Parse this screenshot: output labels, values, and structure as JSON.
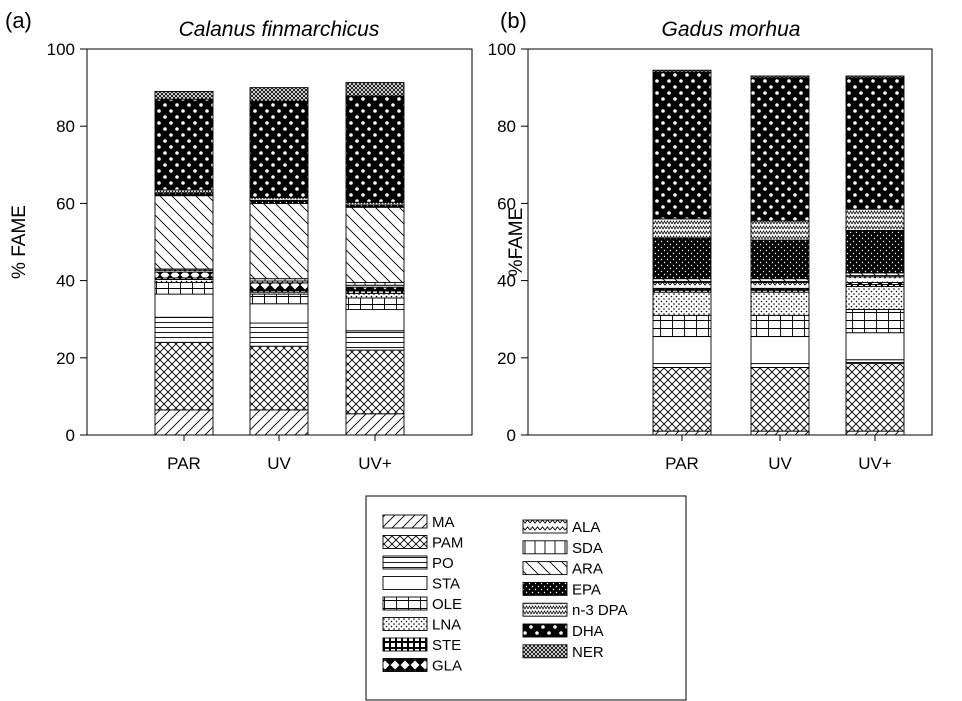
{
  "chart_data": [
    {
      "type": "bar",
      "stacked": true,
      "panel_label": "(a)",
      "title": "Calanus finmarchicus",
      "xlabel": "",
      "ylabel": "% FAME",
      "ylim": [
        0,
        100
      ],
      "yticks": [
        0,
        20,
        40,
        60,
        80,
        100
      ],
      "categories": [
        "PAR",
        "UV",
        "UV+"
      ],
      "series": [
        {
          "name": "MA",
          "values": [
            6.5,
            6.5,
            5.5
          ]
        },
        {
          "name": "PAM",
          "values": [
            17.5,
            16.5,
            16.5
          ]
        },
        {
          "name": "PO",
          "values": [
            6.5,
            6.0,
            5.0
          ]
        },
        {
          "name": "STA",
          "values": [
            6.0,
            5.0,
            5.5
          ]
        },
        {
          "name": "OLE",
          "values": [
            3.0,
            2.5,
            3.0
          ]
        },
        {
          "name": "LNA",
          "values": [
            0.8,
            0.5,
            1.2
          ]
        },
        {
          "name": "STE",
          "values": [
            0.4,
            0.4,
            0.6
          ]
        },
        {
          "name": "GLA",
          "values": [
            1.5,
            2.0,
            1.0
          ]
        },
        {
          "name": "ALA",
          "values": [
            0.5,
            0.5,
            0.5
          ]
        },
        {
          "name": "SDA",
          "values": [
            0.3,
            0.6,
            0.7
          ]
        },
        {
          "name": "ARA",
          "values": [
            19.0,
            19.5,
            19.5
          ]
        },
        {
          "name": "EPA",
          "values": [
            0.7,
            0.8,
            0.6
          ]
        },
        {
          "name": "n-3 DPA",
          "values": [
            0.8,
            0.7,
            0.7
          ]
        },
        {
          "name": "DHA",
          "values": [
            23.5,
            25.0,
            27.5
          ]
        },
        {
          "name": "NER",
          "values": [
            2.0,
            3.5,
            3.5
          ]
        }
      ]
    },
    {
      "type": "bar",
      "stacked": true,
      "panel_label": "(b)",
      "title": "Gadus morhua",
      "xlabel": "",
      "ylabel": "%FAME",
      "ylim": [
        0,
        100
      ],
      "yticks": [
        0,
        20,
        40,
        60,
        80,
        100
      ],
      "categories": [
        "PAR",
        "UV",
        "UV+"
      ],
      "series": [
        {
          "name": "MA",
          "values": [
            1.0,
            1.0,
            1.0
          ]
        },
        {
          "name": "PAM",
          "values": [
            16.5,
            16.5,
            17.5
          ]
        },
        {
          "name": "PO",
          "values": [
            1.0,
            1.0,
            1.0
          ]
        },
        {
          "name": "STA",
          "values": [
            7.0,
            7.0,
            7.0
          ]
        },
        {
          "name": "OLE",
          "values": [
            5.5,
            5.5,
            6.0
          ]
        },
        {
          "name": "LNA",
          "values": [
            6.0,
            6.0,
            6.0
          ]
        },
        {
          "name": "STE",
          "values": [
            0.5,
            0.5,
            0.5
          ]
        },
        {
          "name": "GLA",
          "values": [
            0.5,
            0.5,
            0.5
          ]
        },
        {
          "name": "ALA",
          "values": [
            1.5,
            1.5,
            1.5
          ]
        },
        {
          "name": "SDA",
          "values": [
            0.3,
            0.3,
            0.3
          ]
        },
        {
          "name": "ARA",
          "values": [
            0.7,
            0.7,
            0.7
          ]
        },
        {
          "name": "EPA",
          "values": [
            10.5,
            10.0,
            11.0
          ]
        },
        {
          "name": "n-3 DPA",
          "values": [
            5.0,
            5.0,
            5.5
          ]
        },
        {
          "name": "DHA",
          "values": [
            38.0,
            37.0,
            34.0
          ]
        },
        {
          "name": "NER",
          "values": [
            0.5,
            0.5,
            0.5
          ]
        }
      ]
    }
  ],
  "legend": {
    "placement": "bottom-center",
    "column1": [
      "MA",
      "PAM",
      "PO",
      "STA",
      "OLE",
      "LNA",
      "STE",
      "GLA"
    ],
    "column2": [
      "ALA",
      "SDA",
      "ARA",
      "EPA",
      "n-3 DPA",
      "DHA",
      "NER"
    ]
  },
  "pattern_names": {
    "MA": "diagonal-hatch",
    "PAM": "crosshatch",
    "PO": "horizontal-lines",
    "STA": "blank",
    "OLE": "grid",
    "LNA": "dots",
    "STE": "bricks",
    "GLA": "diamonds",
    "ALA": "zigzag",
    "SDA": "vertical-lines",
    "ARA": "back-diagonal-hatch",
    "EPA": "black-with-white-dots",
    "n-3 DPA": "fine-zigzag",
    "DHA": "black-checker",
    "NER": "dense-crosshatch"
  }
}
